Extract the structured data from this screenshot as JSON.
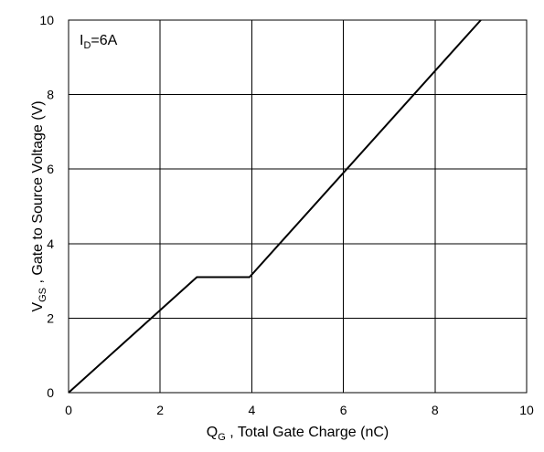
{
  "chart_data": {
    "type": "line",
    "title": "",
    "annotation": {
      "main": "I",
      "sub": "D",
      "rest": "=6A"
    },
    "xlabel": {
      "main": "Q",
      "sub": "G",
      "rest": " , Total Gate Charge (nC)"
    },
    "ylabel": {
      "main": "V",
      "sub": "GS",
      "rest": " , Gate to Source Voltage (V)"
    },
    "xlim": [
      0,
      10
    ],
    "ylim": [
      0,
      10
    ],
    "xticks": [
      0,
      2,
      4,
      6,
      8,
      10
    ],
    "yticks": [
      0,
      2,
      4,
      6,
      8,
      10
    ],
    "grid": true,
    "series": [
      {
        "x": [
          0,
          2.8,
          3.95,
          9.0
        ],
        "y": [
          0,
          3.1,
          3.1,
          10
        ]
      }
    ]
  }
}
